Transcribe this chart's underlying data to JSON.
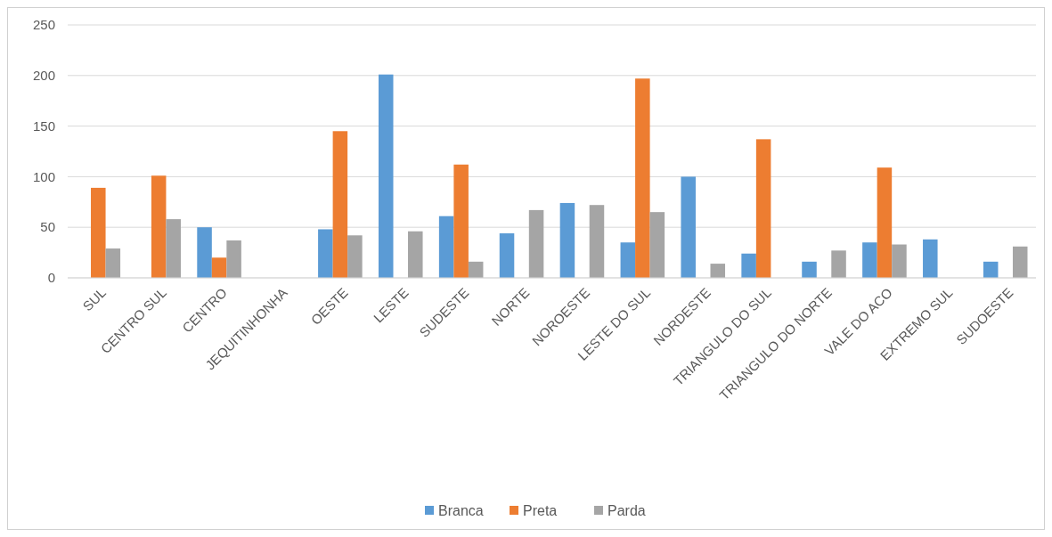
{
  "chart_data": {
    "type": "bar",
    "categories": [
      "SUL",
      "CENTRO SUL",
      "CENTRO",
      "JEQUITINHONHA",
      "OESTE",
      "LESTE",
      "SUDESTE",
      "NORTE",
      "NOROESTE",
      "LESTE DO SUL",
      "NORDESTE",
      "TRIANGULO DO SUL",
      "TRIANGULO DO NORTE",
      "VALE DO ACO",
      "EXTREMO SUL",
      "SUDOESTE"
    ],
    "series": [
      {
        "name": "Branca",
        "color": "#5b9bd5",
        "values": [
          0,
          0,
          50,
          0,
          48,
          201,
          61,
          44,
          74,
          35,
          100,
          24,
          16,
          35,
          38,
          16
        ]
      },
      {
        "name": "Preta",
        "color": "#ed7d31",
        "values": [
          89,
          101,
          20,
          0,
          145,
          0,
          112,
          0,
          0,
          197,
          0,
          137,
          0,
          109,
          0,
          0
        ]
      },
      {
        "name": "Parda",
        "color": "#a5a5a5",
        "values": [
          29,
          58,
          37,
          0,
          42,
          46,
          16,
          67,
          72,
          65,
          14,
          0,
          27,
          33,
          0,
          31
        ]
      }
    ],
    "ylim": [
      0,
      250
    ],
    "yticks": [
      0,
      50,
      100,
      150,
      200,
      250
    ],
    "grid": "y",
    "legend": "bottom"
  }
}
